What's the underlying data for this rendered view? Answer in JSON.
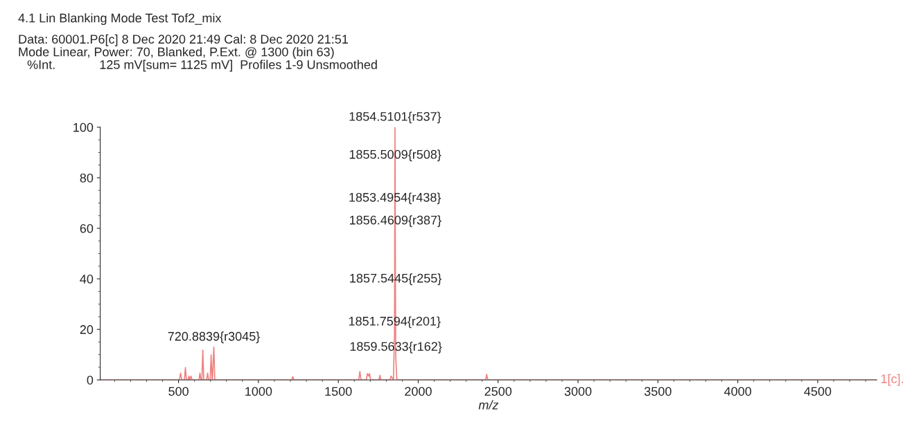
{
  "chart_data": {
    "type": "line",
    "title": "4.1 Lin Blanking Mode Test Tof2_mix",
    "subtitle": "Data: 60001.P6[c] 8 Dec 2020 21:49 Cal: 8 Dec 2020 21:51",
    "xlabel": "m/z",
    "ylabel": "%Int.",
    "x": [
      10,
      505,
      513,
      520,
      537,
      543,
      549,
      560,
      565,
      570,
      578,
      584,
      628,
      634,
      640,
      646,
      652,
      658,
      676,
      682,
      688,
      698,
      704,
      710,
      712,
      720.8839,
      727,
      1208,
      1215,
      1222,
      1628,
      1635,
      1642,
      1675,
      1682,
      1690,
      1695,
      1702,
      1754,
      1760,
      1766,
      1824,
      1830,
      1845,
      1851.7594,
      1853.4954,
      1854.5101,
      1855.5009,
      1856.4609,
      1857.5445,
      1859.5633,
      1866,
      2422,
      2428,
      2436,
      4870
    ],
    "series": [
      {
        "color": "#f08080",
        "values": [
          0,
          0,
          2.7,
          0,
          0,
          4.9,
          0,
          0,
          1.5,
          0,
          1.5,
          0,
          0,
          2.7,
          0,
          0,
          11.8,
          0,
          0,
          2.7,
          0,
          0,
          9.9,
          0,
          0,
          13,
          0,
          0,
          1.3,
          0,
          0,
          3.3,
          0,
          0,
          2.5,
          1.5,
          2.5,
          0,
          0,
          1.8,
          0,
          0,
          1.5,
          0,
          19,
          68,
          100,
          85,
          59,
          36,
          9,
          0,
          0,
          2.2,
          0,
          0
        ]
      }
    ],
    "xlim": [
      10,
      4870
    ],
    "ylim": [
      0,
      100
    ],
    "xticks": [
      500,
      1000,
      1500,
      2000,
      2500,
      3000,
      3500,
      4000,
      4500
    ],
    "yticks": [
      0,
      20,
      40,
      60,
      80,
      100
    ],
    "grid": false,
    "legend": false,
    "marker": "none",
    "line_style": "solid",
    "annotations": [
      "Mode Linear, Power: 70, Blanked, P.Ext. @ 1300 (bin 63)",
      "125 mV[sum= 1125 mV]  Profiles 1-9 Unsmoothed",
      "1[c].",
      {
        "text": "1854.5101{r537}",
        "x": 1854.5101,
        "y": 100
      },
      {
        "text": "1855.5009{r508}",
        "x": 1855.5009,
        "y": 85
      },
      {
        "text": "1853.4954{r438}",
        "x": 1853.4954,
        "y": 68
      },
      {
        "text": "1856.4609{r387}",
        "x": 1856.4609,
        "y": 59
      },
      {
        "text": "1857.5445{r255}",
        "x": 1857.5445,
        "y": 36
      },
      {
        "text": "1851.7594{r201}",
        "x": 1851.7594,
        "y": 19
      },
      {
        "text": "1859.5633{r162}",
        "x": 1859.5633,
        "y": 9
      },
      {
        "text": "720.8839{r3045}",
        "x": 720.8839,
        "y": 13
      }
    ]
  }
}
